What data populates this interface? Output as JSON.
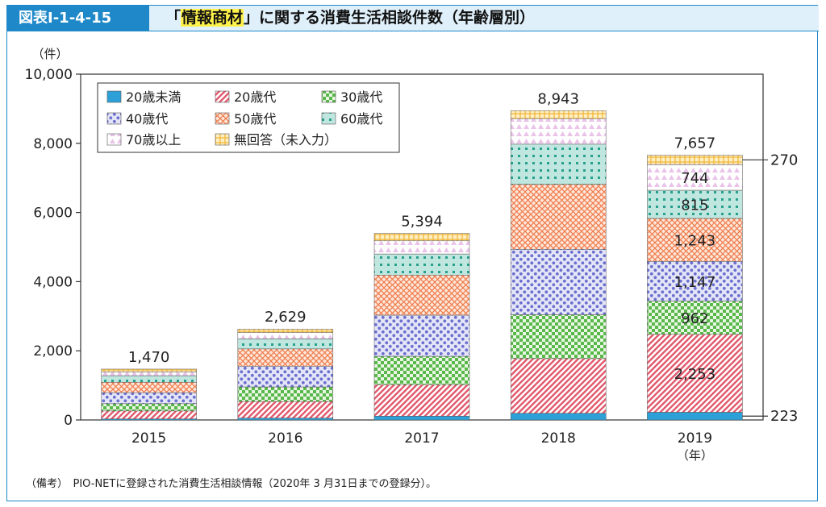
{
  "header": {
    "figure_label": "図表Ⅰ-1-4-15",
    "title_open": "「",
    "title_highlight": "情報商材",
    "title_rest": "」に関する消費生活相談件数（年齢層別）"
  },
  "footer": {
    "note": "（備考）　PIO-NETに登録された消費生活相談情報（2020年 3 月31日までの登録分）。"
  },
  "chart_data": {
    "type": "bar",
    "stacked": true,
    "categories": [
      "2015",
      "2016",
      "2017",
      "2018",
      "2019"
    ],
    "ylabel": "（件）",
    "xlabel": "（年）",
    "ylim": [
      0,
      10000
    ],
    "yticks": [
      0,
      2000,
      4000,
      6000,
      8000,
      10000
    ],
    "ytick_labels": [
      "0",
      "2,000",
      "4,000",
      "6,000",
      "8,000",
      "10,000"
    ],
    "grid": false,
    "legend_position": "top-left",
    "totals": [
      1470,
      2629,
      5394,
      8943,
      7657
    ],
    "total_labels": [
      "1,470",
      "2,629",
      "5,394",
      "8,943",
      "7,657"
    ],
    "series": [
      {
        "name": "20歳未満",
        "pattern": "solid",
        "color": "#2ea0d8",
        "values": [
          30,
          55,
          110,
          195,
          223
        ]
      },
      {
        "name": "20歳代",
        "pattern": "diagonal",
        "color": "#e25a6e",
        "values": [
          230,
          480,
          910,
          1580,
          2253
        ]
      },
      {
        "name": "30歳代",
        "pattern": "checker",
        "color": "#58b84a",
        "values": [
          210,
          420,
          820,
          1270,
          962
        ]
      },
      {
        "name": "40歳代",
        "pattern": "dots",
        "color": "#6b6fce",
        "values": [
          320,
          600,
          1190,
          1890,
          1147
        ]
      },
      {
        "name": "50歳代",
        "pattern": "crosshatch",
        "color": "#f07a4a",
        "values": [
          300,
          500,
          1160,
          1880,
          1243
        ]
      },
      {
        "name": "60歳代",
        "pattern": "squares",
        "color": "#27a08c",
        "values": [
          190,
          290,
          610,
          1160,
          815
        ]
      },
      {
        "name": "70歳以上",
        "pattern": "triangles",
        "color": "#d792d4",
        "values": [
          110,
          180,
          380,
          740,
          744
        ]
      },
      {
        "name": "無回答（未入力）",
        "pattern": "lattice",
        "color": "#f2b53a",
        "values": [
          80,
          104,
          214,
          228,
          270
        ]
      }
    ],
    "annotations": {
      "segment_labels_2019": [
        "2,253",
        "962",
        "1,147",
        "1,243",
        "815",
        "744"
      ],
      "callout_top": "270",
      "callout_bottom": "223"
    }
  }
}
